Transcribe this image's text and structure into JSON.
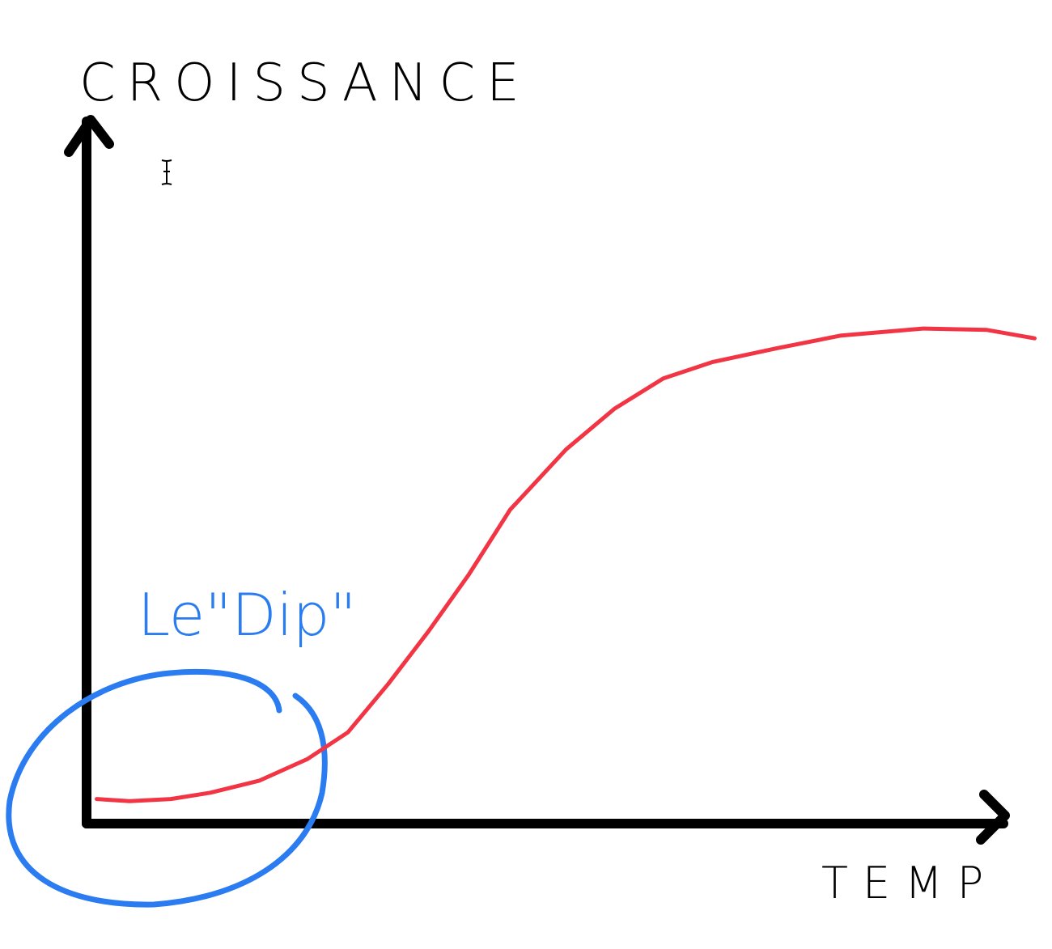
{
  "chart_data": {
    "type": "line",
    "y_label": "CROISSANCE",
    "x_label": "TEMP",
    "annotation": "Le\"Dip\"",
    "x": [
      1.1,
      4.7,
      9.2,
      13.5,
      18.8,
      24.1,
      28.5,
      32.9,
      37.3,
      41.7,
      46.2,
      52.3,
      57.6,
      62.9,
      68.2,
      75.3,
      82.3,
      91.2,
      98.2,
      103.4
    ],
    "values": [
      3.5,
      3.2,
      3.5,
      4.4,
      6.1,
      9.2,
      13.0,
      19.9,
      27.4,
      35.5,
      44.7,
      53.3,
      59.1,
      63.4,
      65.7,
      67.7,
      69.5,
      70.5,
      70.3,
      69.1
    ],
    "color": "#f23545",
    "xlim": [
      0,
      100
    ],
    "ylim": [
      0,
      100
    ]
  }
}
